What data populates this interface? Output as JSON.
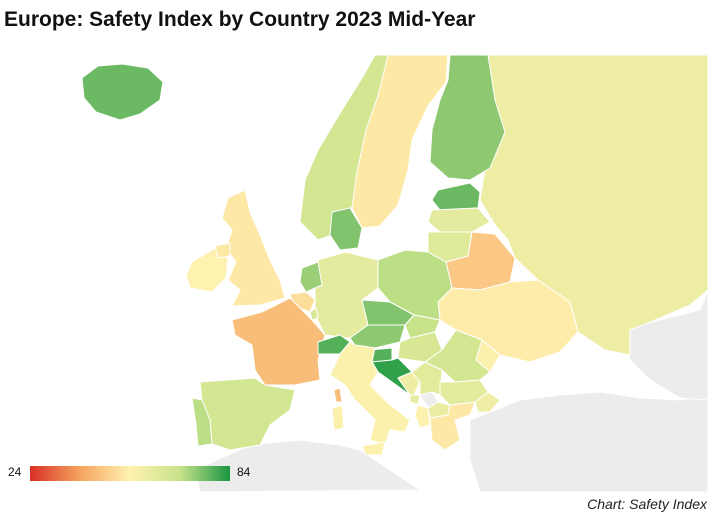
{
  "title": "Europe: Safety Index by Country 2023 Mid-Year",
  "credit": "Chart: Safety Index",
  "legend": {
    "min_label": "24",
    "max_label": "84",
    "min": 24,
    "max": 84,
    "colors": [
      "#d73027",
      "#f5a45d",
      "#fff2b0",
      "#c8e38a",
      "#1a9641"
    ]
  },
  "no_data_color": "#ececec",
  "sea_color": "#ffffff",
  "regions": [
    {
      "id": "iceland",
      "value": 77
    },
    {
      "id": "norway",
      "value": 66
    },
    {
      "id": "sweden",
      "value": 52
    },
    {
      "id": "finland",
      "value": 74
    },
    {
      "id": "estonia",
      "value": 77
    },
    {
      "id": "latvia",
      "value": 61
    },
    {
      "id": "lithuania",
      "value": 63
    },
    {
      "id": "belarus",
      "value": 46
    },
    {
      "id": "russia",
      "value": 59
    },
    {
      "id": "ukraine",
      "value": 53
    },
    {
      "id": "moldova",
      "value": 55
    },
    {
      "id": "romania",
      "value": 66
    },
    {
      "id": "bulgaria",
      "value": 62
    },
    {
      "id": "greece",
      "value": 52
    },
    {
      "id": "turkey_europe",
      "value": 58
    },
    {
      "id": "poland",
      "value": 70
    },
    {
      "id": "germany",
      "value": 61
    },
    {
      "id": "denmark",
      "value": 75
    },
    {
      "id": "netherlands",
      "value": 73
    },
    {
      "id": "belgium",
      "value": 50
    },
    {
      "id": "luxembourg",
      "value": 65
    },
    {
      "id": "france",
      "value": 44
    },
    {
      "id": "switzerland",
      "value": 79
    },
    {
      "id": "austria",
      "value": 74
    },
    {
      "id": "czechia",
      "value": 75
    },
    {
      "id": "slovakia",
      "value": 69
    },
    {
      "id": "hungary",
      "value": 65
    },
    {
      "id": "slovenia",
      "value": 79
    },
    {
      "id": "croatia",
      "value": 82
    },
    {
      "id": "bosnia",
      "value": 58
    },
    {
      "id": "serbia",
      "value": 62
    },
    {
      "id": "montenegro",
      "value": 60
    },
    {
      "id": "albania",
      "value": 54
    },
    {
      "id": "north_macedonia",
      "value": 60
    },
    {
      "id": "italy",
      "value": 55
    },
    {
      "id": "sardinia",
      "value": 55
    },
    {
      "id": "sicily",
      "value": 55
    },
    {
      "id": "corsica",
      "value": 44
    },
    {
      "id": "spain",
      "value": 66
    },
    {
      "id": "portugal",
      "value": 70
    },
    {
      "id": "uk",
      "value": 52
    },
    {
      "id": "ireland",
      "value": 54
    },
    {
      "id": "northern_ireland",
      "value": 52
    }
  ]
}
